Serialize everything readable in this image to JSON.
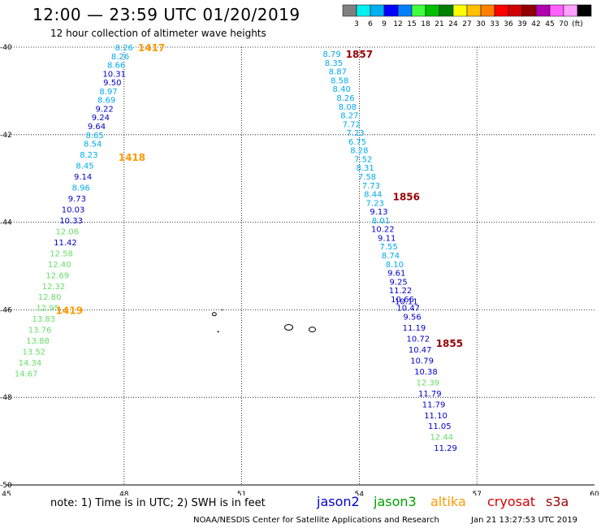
{
  "title": "12:00 — 23:59 UTC 01/20/2019",
  "subtitle": "12 hour collection of altimeter wave heights",
  "colors": {
    "jason2": "#0000cc",
    "jason3": "#00a000",
    "altika": "#ff9900",
    "cryosat": "#dd0000",
    "s3a": "#990000",
    "swh_light_blue": "#00aaee",
    "swh_light_green": "#66dd66"
  },
  "color_scale": {
    "colors": [
      "#808080",
      "#00f0f0",
      "#00b0f0",
      "#0000ff",
      "#0080ff",
      "#40ff40",
      "#00c000",
      "#008000",
      "#ffff00",
      "#ffc000",
      "#ff8000",
      "#ff0000",
      "#d00000",
      "#900000",
      "#b000b0",
      "#ff60ff",
      "#ffa0ff",
      "#000000"
    ],
    "labels": [
      "3",
      "6",
      "9",
      "12",
      "15",
      "18",
      "21",
      "24",
      "27",
      "30",
      "33",
      "36",
      "39",
      "42",
      "45",
      "70",
      "(ft)"
    ]
  },
  "axes": {
    "lon_ticks": [
      "45",
      "48",
      "51",
      "54",
      "57",
      "60"
    ],
    "lat_ticks": [
      "-40",
      "-42",
      "-44",
      "-46",
      "-48",
      "-50"
    ]
  },
  "note": "note:  1) Time is in UTC; 2) SWH is in feet",
  "satellites": [
    {
      "name": "jason2",
      "color": "#0000cc"
    },
    {
      "name": "jason3",
      "color": "#00a000"
    },
    {
      "name": "altika",
      "color": "#ff9900"
    },
    {
      "name": "cryosat",
      "color": "#dd0000"
    },
    {
      "name": "s3a",
      "color": "#990000"
    }
  ],
  "credit": "NOAA/NESDIS Center for Satellite Applications and Research",
  "timestamp": "Jan 21 13:27:53 UTC 2019",
  "map_data": {
    "lon_range": [
      45,
      60
    ],
    "lat_range": [
      -40,
      -50
    ],
    "time_labels": [
      {
        "text": "1417",
        "lon": 48.7,
        "lat": -40.0,
        "color": "#ff9900"
      },
      {
        "text": "1418",
        "lon": 48.2,
        "lat": -42.5,
        "color": "#ff9900"
      },
      {
        "text": "1419",
        "lon": 46.6,
        "lat": -46.0,
        "color": "#ff9900"
      },
      {
        "text": "1857",
        "lon": 54.0,
        "lat": -40.15,
        "color": "#990000"
      },
      {
        "text": "1856",
        "lon": 55.2,
        "lat": -43.4,
        "color": "#990000"
      },
      {
        "text": "1855",
        "lon": 56.3,
        "lat": -46.75,
        "color": "#990000"
      }
    ],
    "tracks": [
      {
        "name": "altika-track",
        "points": [
          {
            "v": "8.26",
            "lon": 48.0,
            "lat": -40.0,
            "c": "#00aaee"
          },
          {
            "v": "8.26",
            "lon": 47.9,
            "lat": -40.2,
            "c": "#00aaee"
          },
          {
            "v": "8.66",
            "lon": 47.8,
            "lat": -40.4,
            "c": "#00aaee"
          },
          {
            "v": "10.31",
            "lon": 47.75,
            "lat": -40.6,
            "c": "#0000cc"
          },
          {
            "v": "9.50",
            "lon": 47.7,
            "lat": -40.8,
            "c": "#0000cc"
          },
          {
            "v": "8.97",
            "lon": 47.6,
            "lat": -41.0,
            "c": "#00aaee"
          },
          {
            "v": "8.69",
            "lon": 47.55,
            "lat": -41.2,
            "c": "#00aaee"
          },
          {
            "v": "9.22",
            "lon": 47.5,
            "lat": -41.4,
            "c": "#0000cc"
          },
          {
            "v": "9.24",
            "lon": 47.4,
            "lat": -41.6,
            "c": "#0000cc"
          },
          {
            "v": "9.64",
            "lon": 47.3,
            "lat": -41.8,
            "c": "#0000cc"
          },
          {
            "v": "8.65",
            "lon": 47.25,
            "lat": -42.0,
            "c": "#00aaee"
          },
          {
            "v": "8.54",
            "lon": 47.2,
            "lat": -42.2,
            "c": "#00aaee"
          },
          {
            "v": "8.23",
            "lon": 47.1,
            "lat": -42.45,
            "c": "#00aaee"
          },
          {
            "v": "8.45",
            "lon": 47.0,
            "lat": -42.7,
            "c": "#00aaee"
          },
          {
            "v": "9.14",
            "lon": 46.95,
            "lat": -42.95,
            "c": "#0000cc"
          },
          {
            "v": "8.96",
            "lon": 46.9,
            "lat": -43.2,
            "c": "#00aaee"
          },
          {
            "v": "9.73",
            "lon": 46.8,
            "lat": -43.45,
            "c": "#0000cc"
          },
          {
            "v": "10.03",
            "lon": 46.7,
            "lat": -43.7,
            "c": "#0000cc"
          },
          {
            "v": "10.33",
            "lon": 46.65,
            "lat": -43.95,
            "c": "#0000cc"
          },
          {
            "v": "12.06",
            "lon": 46.55,
            "lat": -44.2,
            "c": "#66dd66"
          },
          {
            "v": "11.42",
            "lon": 46.5,
            "lat": -44.45,
            "c": "#0000cc"
          },
          {
            "v": "12.58",
            "lon": 46.4,
            "lat": -44.7,
            "c": "#66dd66"
          },
          {
            "v": "12.40",
            "lon": 46.35,
            "lat": -44.95,
            "c": "#66dd66"
          },
          {
            "v": "12.69",
            "lon": 46.3,
            "lat": -45.2,
            "c": "#66dd66"
          },
          {
            "v": "12.32",
            "lon": 46.2,
            "lat": -45.45,
            "c": "#66dd66"
          },
          {
            "v": "12.80",
            "lon": 46.1,
            "lat": -45.7,
            "c": "#66dd66"
          },
          {
            "v": "12.95",
            "lon": 46.05,
            "lat": -45.95,
            "c": "#66dd66"
          },
          {
            "v": "13.83",
            "lon": 45.95,
            "lat": -46.2,
            "c": "#66dd66"
          },
          {
            "v": "13.76",
            "lon": 45.85,
            "lat": -46.45,
            "c": "#66dd66"
          },
          {
            "v": "13.88",
            "lon": 45.8,
            "lat": -46.7,
            "c": "#66dd66"
          },
          {
            "v": "13.52",
            "lon": 45.7,
            "lat": -46.95,
            "c": "#66dd66"
          },
          {
            "v": "14.34",
            "lon": 45.6,
            "lat": -47.2,
            "c": "#66dd66"
          },
          {
            "v": "14.67",
            "lon": 45.5,
            "lat": -47.45,
            "c": "#66dd66"
          }
        ]
      },
      {
        "name": "s3a-track",
        "points": [
          {
            "v": "8.79",
            "lon": 53.3,
            "lat": -40.15,
            "c": "#00aaee"
          },
          {
            "v": "8.35",
            "lon": 53.35,
            "lat": -40.35,
            "c": "#00aaee"
          },
          {
            "v": "8.87",
            "lon": 53.45,
            "lat": -40.55,
            "c": "#00aaee"
          },
          {
            "v": "8.58",
            "lon": 53.5,
            "lat": -40.75,
            "c": "#00aaee"
          },
          {
            "v": "8.40",
            "lon": 53.55,
            "lat": -40.95,
            "c": "#00aaee"
          },
          {
            "v": "8.26",
            "lon": 53.65,
            "lat": -41.15,
            "c": "#00aaee"
          },
          {
            "v": "8.08",
            "lon": 53.7,
            "lat": -41.35,
            "c": "#00aaee"
          },
          {
            "v": "8.27",
            "lon": 53.75,
            "lat": -41.55,
            "c": "#00aaee"
          },
          {
            "v": "7.72",
            "lon": 53.8,
            "lat": -41.75,
            "c": "#00aaee"
          },
          {
            "v": "7.23",
            "lon": 53.9,
            "lat": -41.95,
            "c": "#00aaee"
          },
          {
            "v": "6.75",
            "lon": 53.95,
            "lat": -42.15,
            "c": "#00aaee"
          },
          {
            "v": "8.28",
            "lon": 54.0,
            "lat": -42.35,
            "c": "#00aaee"
          },
          {
            "v": "7.52",
            "lon": 54.1,
            "lat": -42.55,
            "c": "#00aaee"
          },
          {
            "v": "8.31",
            "lon": 54.15,
            "lat": -42.75,
            "c": "#00aaee"
          },
          {
            "v": "7.58",
            "lon": 54.2,
            "lat": -42.95,
            "c": "#00aaee"
          },
          {
            "v": "7.73",
            "lon": 54.3,
            "lat": -43.15,
            "c": "#00aaee"
          },
          {
            "v": "8.44",
            "lon": 54.35,
            "lat": -43.35,
            "c": "#00aaee"
          },
          {
            "v": "7.23",
            "lon": 54.4,
            "lat": -43.55,
            "c": "#00aaee"
          },
          {
            "v": "9.13",
            "lon": 54.5,
            "lat": -43.75,
            "c": "#0000cc"
          },
          {
            "v": "8.01",
            "lon": 54.55,
            "lat": -43.95,
            "c": "#00aaee"
          },
          {
            "v": "10.22",
            "lon": 54.6,
            "lat": -44.15,
            "c": "#0000cc"
          },
          {
            "v": "9.11",
            "lon": 54.7,
            "lat": -44.35,
            "c": "#0000cc"
          },
          {
            "v": "7.55",
            "lon": 54.75,
            "lat": -44.55,
            "c": "#00aaee"
          },
          {
            "v": "8.74",
            "lon": 54.8,
            "lat": -44.75,
            "c": "#00aaee"
          },
          {
            "v": "8.10",
            "lon": 54.9,
            "lat": -44.95,
            "c": "#00aaee"
          },
          {
            "v": "9.61",
            "lon": 54.95,
            "lat": -45.15,
            "c": "#0000cc"
          },
          {
            "v": "9.25",
            "lon": 55.0,
            "lat": -45.35,
            "c": "#0000cc"
          },
          {
            "v": "11.22",
            "lon": 55.05,
            "lat": -45.55,
            "c": "#0000cc"
          },
          {
            "v": "10.66",
            "lon": 55.1,
            "lat": -45.75,
            "c": "#0000cc"
          },
          {
            "v": "10.11",
            "lon": 55.2,
            "lat": -45.8,
            "c": "#0000cc"
          },
          {
            "v": "10.47",
            "lon": 55.25,
            "lat": -45.95,
            "c": "#0000cc"
          },
          {
            "v": "9.56",
            "lon": 55.35,
            "lat": -46.15,
            "c": "#0000cc"
          },
          {
            "v": "11.19",
            "lon": 55.4,
            "lat": -46.4,
            "c": "#0000cc"
          },
          {
            "v": "10.72",
            "lon": 55.5,
            "lat": -46.65,
            "c": "#0000cc"
          },
          {
            "v": "10.47",
            "lon": 55.55,
            "lat": -46.9,
            "c": "#0000cc"
          },
          {
            "v": "10.79",
            "lon": 55.6,
            "lat": -47.15,
            "c": "#0000cc"
          },
          {
            "v": "10.38",
            "lon": 55.7,
            "lat": -47.4,
            "c": "#0000cc"
          },
          {
            "v": "12.39",
            "lon": 55.75,
            "lat": -47.65,
            "c": "#66dd66"
          },
          {
            "v": "11.79",
            "lon": 55.8,
            "lat": -47.9,
            "c": "#0000cc"
          },
          {
            "v": "11.79",
            "lon": 55.9,
            "lat": -48.15,
            "c": "#0000cc"
          },
          {
            "v": "11.10",
            "lon": 55.95,
            "lat": -48.4,
            "c": "#0000cc"
          },
          {
            "v": "11.05",
            "lon": 56.05,
            "lat": -48.65,
            "c": "#0000cc"
          },
          {
            "v": "12.44",
            "lon": 56.1,
            "lat": -48.9,
            "c": "#66dd66"
          },
          {
            "v": "11.29",
            "lon": 56.2,
            "lat": -49.15,
            "c": "#0000cc"
          }
        ]
      }
    ]
  }
}
